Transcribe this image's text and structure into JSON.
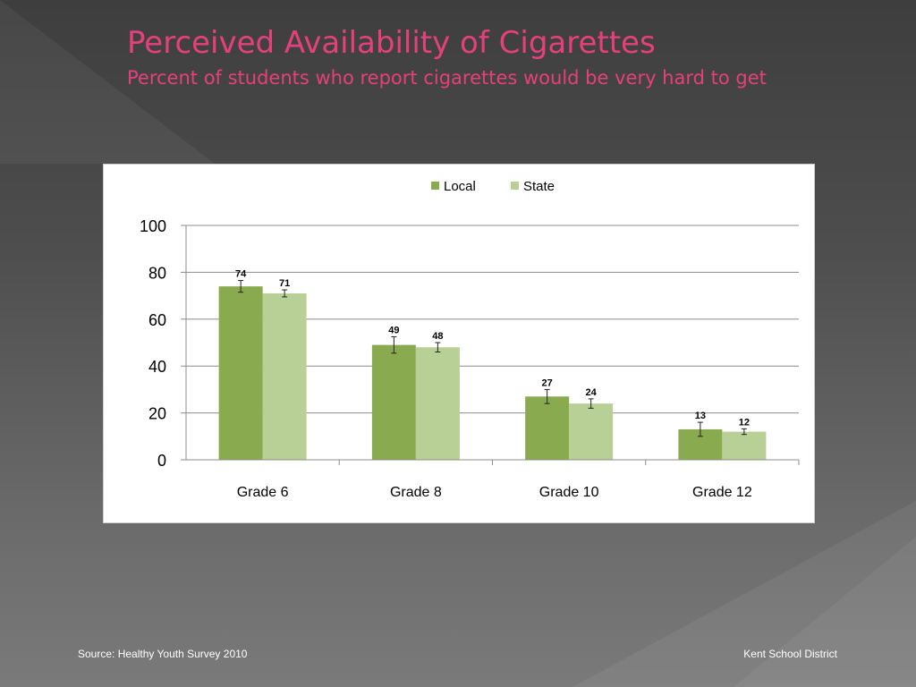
{
  "slide": {
    "title": "Perceived Availability of Cigarettes",
    "subtitle": "Percent of students who report cigarettes would be very hard to get",
    "footer_left": "Source: Healthy Youth Survey 2010",
    "footer_right": "Kent School District"
  },
  "colors": {
    "accent_title": "#e6407a",
    "local": "#8aaa50",
    "state": "#b8d095"
  },
  "chart_data": {
    "type": "bar",
    "categories": [
      "Grade 6",
      "Grade 8",
      "Grade 10",
      "Grade 12"
    ],
    "series": [
      {
        "name": "Local",
        "values": [
          74,
          49,
          27,
          13
        ],
        "error": [
          2.5,
          3.5,
          3,
          3
        ]
      },
      {
        "name": "State",
        "values": [
          71,
          48,
          24,
          12
        ],
        "error": [
          1.5,
          2,
          2,
          1.2
        ]
      }
    ],
    "title": "",
    "xlabel": "",
    "ylabel": "",
    "ylim": [
      0,
      100
    ],
    "yticks": [
      0,
      20,
      40,
      60,
      80,
      100
    ],
    "grid": true,
    "legend": "top-center",
    "data_labels": true
  }
}
